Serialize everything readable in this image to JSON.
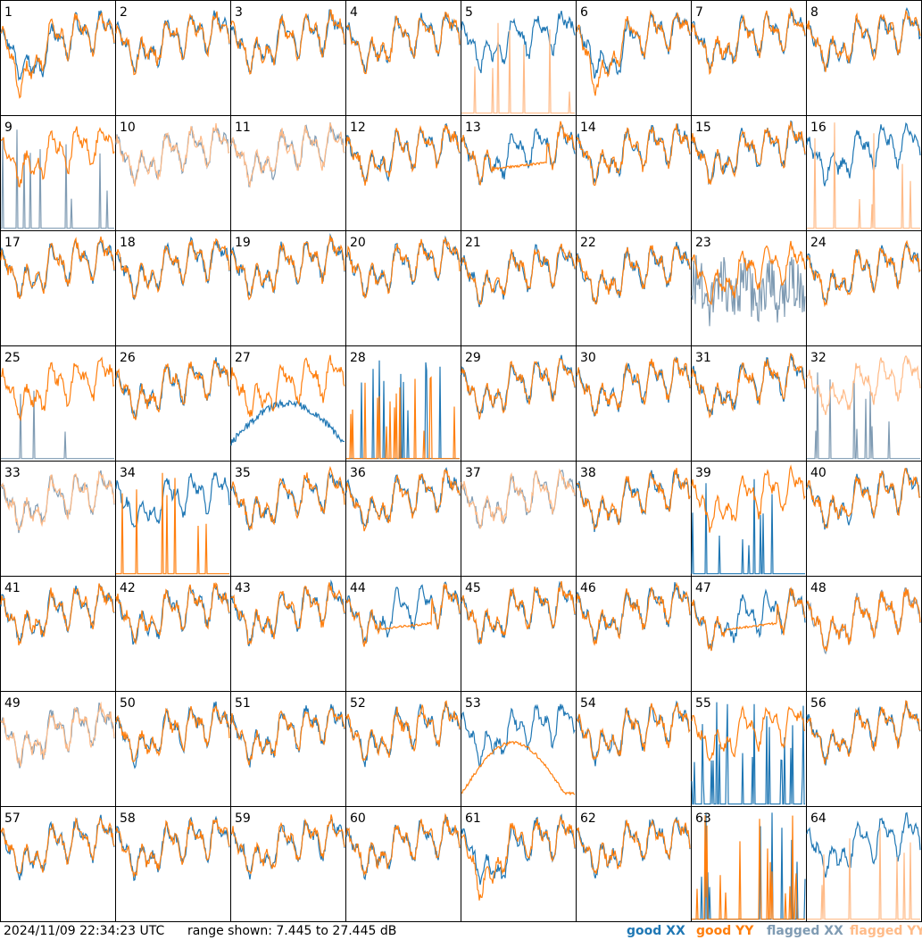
{
  "footer": {
    "timestamp": "2024/11/09 22:34:23 UTC",
    "range_text": "range shown: 7.445 to 27.445 dB"
  },
  "legend": [
    {
      "word": "good",
      "pol": "XX",
      "color": "#1f77b4"
    },
    {
      "word": "good",
      "pol": "YY",
      "color": "#ff7f0e"
    },
    {
      "word": "flagged",
      "pol": "XX",
      "color": "#7f9bb3"
    },
    {
      "word": "flagged",
      "pol": "YY",
      "color": "#ffbb88"
    }
  ],
  "colors": {
    "good_xx": "#1f77b4",
    "good_yy": "#ff7f0e",
    "flagged_xx": "#7f9bb3",
    "flagged_yy": "#ffbb88"
  },
  "chart_data": {
    "type": "line",
    "layout": "8x8 grid of small-multiple spectra",
    "ylim": [
      7.445,
      27.445
    ],
    "yunit": "dB",
    "panels": [
      {
        "id": "1",
        "xx": "good",
        "yy": "good",
        "style": "dip"
      },
      {
        "id": "2",
        "xx": "good",
        "yy": "good",
        "style": "normal"
      },
      {
        "id": "3",
        "xx": "good",
        "yy": "good",
        "style": "normal"
      },
      {
        "id": "4",
        "xx": "good",
        "yy": "good",
        "style": "normal"
      },
      {
        "id": "5",
        "xx": "good",
        "yy": "flagged",
        "style": "spiky_yy"
      },
      {
        "id": "6",
        "xx": "good",
        "yy": "good",
        "style": "dip"
      },
      {
        "id": "7",
        "xx": "good",
        "yy": "good",
        "style": "normal"
      },
      {
        "id": "8",
        "xx": "good",
        "yy": "good",
        "style": "normal"
      },
      {
        "id": "9",
        "xx": "flagged",
        "yy": "good",
        "style": "spiky_xx"
      },
      {
        "id": "10",
        "xx": "flagged",
        "yy": "flagged",
        "style": "normal"
      },
      {
        "id": "11",
        "xx": "flagged",
        "yy": "flagged",
        "style": "normal"
      },
      {
        "id": "12",
        "xx": "good",
        "yy": "good",
        "style": "normal"
      },
      {
        "id": "13",
        "xx": "good",
        "yy": "good",
        "style": "flat_yy"
      },
      {
        "id": "14",
        "xx": "good",
        "yy": "good",
        "style": "normal"
      },
      {
        "id": "15",
        "xx": "good",
        "yy": "good",
        "style": "normal"
      },
      {
        "id": "16",
        "xx": "good",
        "yy": "flagged",
        "style": "spiky_yy"
      },
      {
        "id": "17",
        "xx": "good",
        "yy": "good",
        "style": "normal"
      },
      {
        "id": "18",
        "xx": "good",
        "yy": "good",
        "style": "normal"
      },
      {
        "id": "19",
        "xx": "good",
        "yy": "good",
        "style": "normal"
      },
      {
        "id": "20",
        "xx": "good",
        "yy": "good",
        "style": "normal"
      },
      {
        "id": "21",
        "xx": "good",
        "yy": "good",
        "style": "normal"
      },
      {
        "id": "22",
        "xx": "good",
        "yy": "good",
        "style": "normal"
      },
      {
        "id": "23",
        "xx": "flagged",
        "yy": "good",
        "style": "noisy_xx"
      },
      {
        "id": "24",
        "xx": "good",
        "yy": "good",
        "style": "normal"
      },
      {
        "id": "25",
        "xx": "flagged",
        "yy": "good",
        "style": "spiky_few_xx"
      },
      {
        "id": "26",
        "xx": "good",
        "yy": "good",
        "style": "normal"
      },
      {
        "id": "27",
        "xx": "good",
        "yy": "good",
        "style": "hump_xx"
      },
      {
        "id": "28",
        "xx": "good",
        "yy": "good",
        "style": "both_spiky"
      },
      {
        "id": "29",
        "xx": "good",
        "yy": "good",
        "style": "normal"
      },
      {
        "id": "30",
        "xx": "good",
        "yy": "good",
        "style": "normal"
      },
      {
        "id": "31",
        "xx": "good",
        "yy": "good",
        "style": "normal"
      },
      {
        "id": "32",
        "xx": "flagged",
        "yy": "flagged",
        "style": "spiky_xx"
      },
      {
        "id": "33",
        "xx": "flagged",
        "yy": "flagged",
        "style": "normal"
      },
      {
        "id": "34",
        "xx": "good",
        "yy": "good",
        "style": "spiky_yy"
      },
      {
        "id": "35",
        "xx": "good",
        "yy": "good",
        "style": "normal"
      },
      {
        "id": "36",
        "xx": "good",
        "yy": "good",
        "style": "normal"
      },
      {
        "id": "37",
        "xx": "flagged",
        "yy": "flagged",
        "style": "normal"
      },
      {
        "id": "38",
        "xx": "good",
        "yy": "good",
        "style": "normal"
      },
      {
        "id": "39",
        "xx": "good",
        "yy": "good",
        "style": "spiky_xx"
      },
      {
        "id": "40",
        "xx": "good",
        "yy": "good",
        "style": "normal"
      },
      {
        "id": "41",
        "xx": "good",
        "yy": "good",
        "style": "normal"
      },
      {
        "id": "42",
        "xx": "good",
        "yy": "good",
        "style": "normal"
      },
      {
        "id": "43",
        "xx": "good",
        "yy": "good",
        "style": "normal"
      },
      {
        "id": "44",
        "xx": "good",
        "yy": "good",
        "style": "flat_yy"
      },
      {
        "id": "45",
        "xx": "good",
        "yy": "good",
        "style": "normal"
      },
      {
        "id": "46",
        "xx": "good",
        "yy": "good",
        "style": "normal"
      },
      {
        "id": "47",
        "xx": "good",
        "yy": "good",
        "style": "flat_yy"
      },
      {
        "id": "48",
        "xx": "flagged",
        "yy": "good",
        "style": "normal"
      },
      {
        "id": "49",
        "xx": "flagged",
        "yy": "flagged",
        "style": "normal"
      },
      {
        "id": "50",
        "xx": "good",
        "yy": "good",
        "style": "normal"
      },
      {
        "id": "51",
        "xx": "good",
        "yy": "good",
        "style": "normal"
      },
      {
        "id": "52",
        "xx": "good",
        "yy": "good",
        "style": "normal"
      },
      {
        "id": "53",
        "xx": "good",
        "yy": "good",
        "style": "hump_yy"
      },
      {
        "id": "54",
        "xx": "good",
        "yy": "good",
        "style": "normal"
      },
      {
        "id": "55",
        "xx": "good",
        "yy": "good",
        "style": "spiky_xx_dense"
      },
      {
        "id": "56",
        "xx": "good",
        "yy": "good",
        "style": "normal"
      },
      {
        "id": "57",
        "xx": "good",
        "yy": "good",
        "style": "normal"
      },
      {
        "id": "58",
        "xx": "good",
        "yy": "good",
        "style": "normal"
      },
      {
        "id": "59",
        "xx": "good",
        "yy": "good",
        "style": "normal"
      },
      {
        "id": "60",
        "xx": "good",
        "yy": "good",
        "style": "normal"
      },
      {
        "id": "61",
        "xx": "good",
        "yy": "good",
        "style": "dip"
      },
      {
        "id": "62",
        "xx": "good",
        "yy": "good",
        "style": "normal"
      },
      {
        "id": "63",
        "xx": "good",
        "yy": "good",
        "style": "both_spiky"
      },
      {
        "id": "64",
        "xx": "good",
        "yy": "flagged",
        "style": "spiky_yy"
      }
    ]
  }
}
